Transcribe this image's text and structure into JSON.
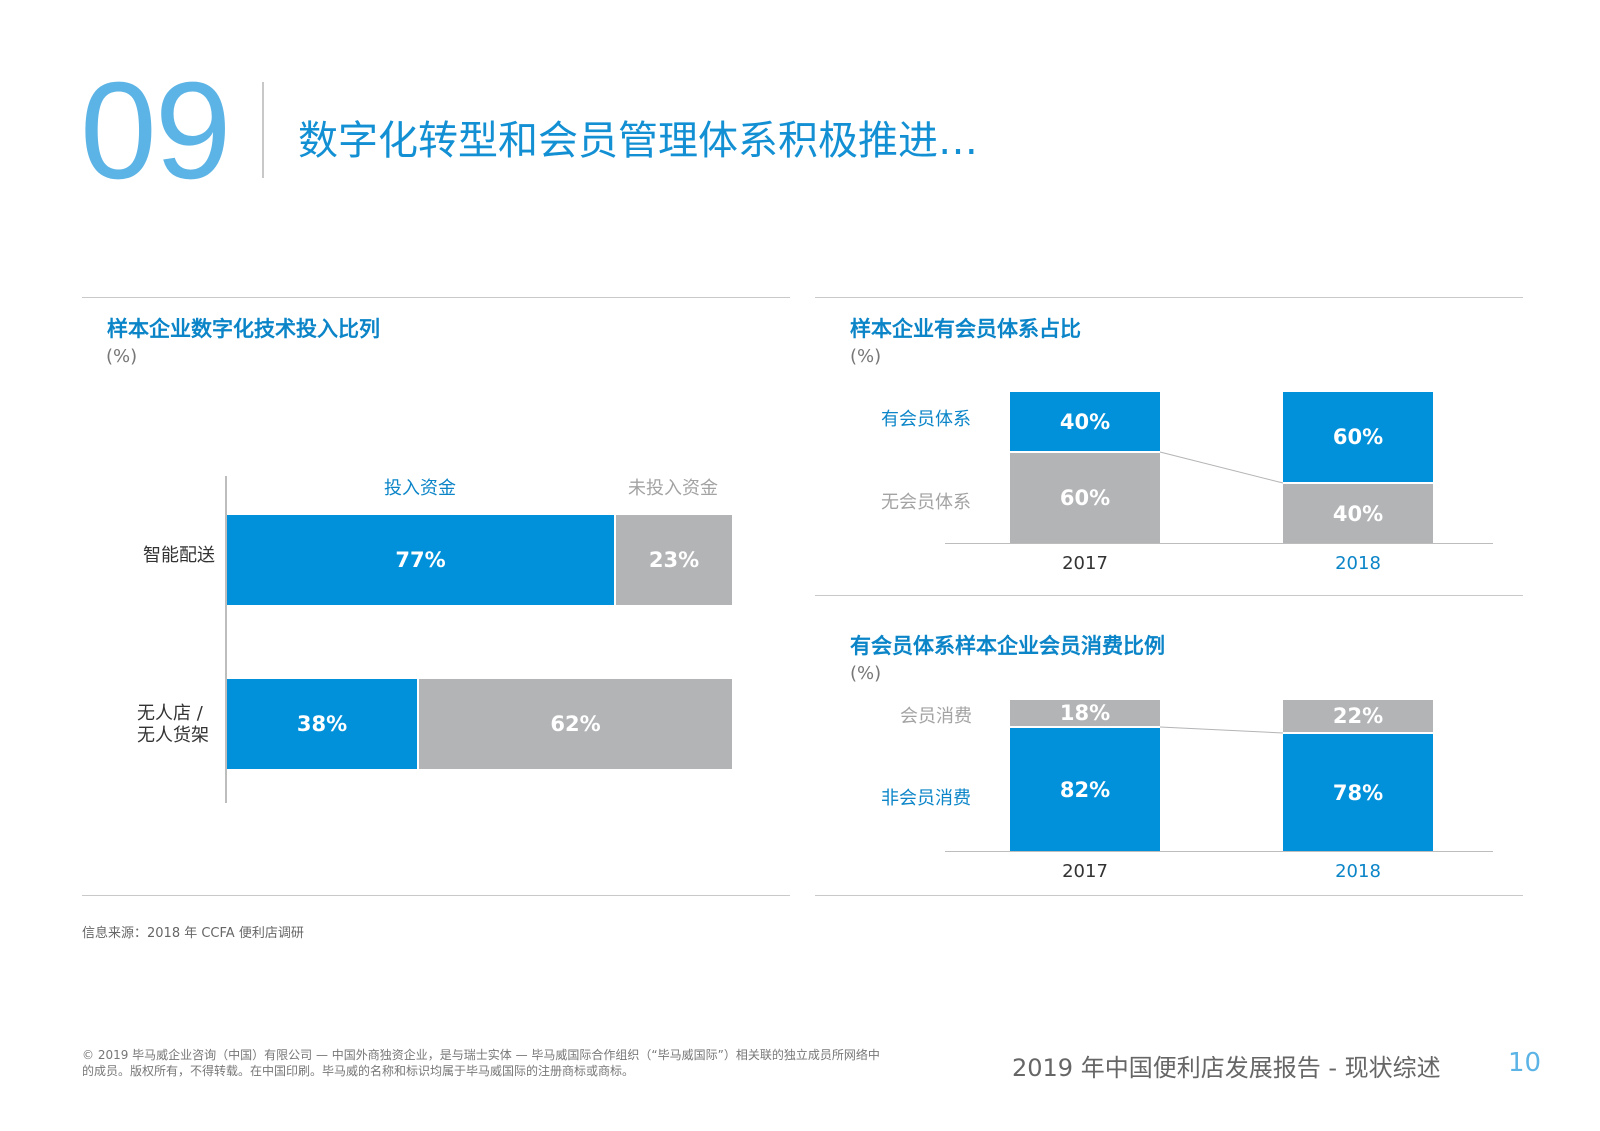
{
  "header": {
    "page_number": "09",
    "title": "数字化转型和会员管理体系积极推进…"
  },
  "colors": {
    "accent": "#0091da",
    "accent_text": "#0b85c8",
    "grey": "#b3b4b6",
    "light_blue": "#5cb4e6"
  },
  "left_panel": {
    "title": "样本企业数字化技术投入比列",
    "unit": "(%)",
    "legend": {
      "invested": "投入资金",
      "not_invested": "未投入资金"
    },
    "categories": [
      {
        "label": "智能配送",
        "invested": "77%",
        "not_invested": "23%"
      },
      {
        "label": "无人店 /\n无人货架",
        "invested": "38%",
        "not_invested": "62%"
      }
    ]
  },
  "right_top": {
    "title": "样本企业有会员体系占比",
    "unit": "(%)",
    "series_labels": {
      "top": "有会员体系",
      "bottom": "无会员体系"
    },
    "years": [
      "2017",
      "2018"
    ],
    "top_values": [
      "40%",
      "60%"
    ],
    "bottom_values": [
      "60%",
      "40%"
    ]
  },
  "right_bottom": {
    "title": "有会员体系样本企业会员消费比例",
    "unit": "(%)",
    "series_labels": {
      "top": "会员消费",
      "bottom": "非会员消费"
    },
    "years": [
      "2017",
      "2018"
    ],
    "top_values": [
      "18%",
      "22%"
    ],
    "bottom_values": [
      "82%",
      "78%"
    ]
  },
  "chart_data": [
    {
      "type": "bar",
      "orientation": "horizontal",
      "stacked": true,
      "title": "样本企业数字化技术投入比列",
      "ylabel": "(%)",
      "categories": [
        "智能配送",
        "无人店 / 无人货架"
      ],
      "series": [
        {
          "name": "投入资金",
          "values": [
            77,
            38
          ]
        },
        {
          "name": "未投入资金",
          "values": [
            23,
            62
          ]
        }
      ],
      "ylim": [
        0,
        100
      ],
      "legend": "top"
    },
    {
      "type": "bar",
      "stacked": true,
      "title": "样本企业有会员体系占比",
      "ylabel": "(%)",
      "categories": [
        "2017",
        "2018"
      ],
      "series": [
        {
          "name": "有会员体系",
          "values": [
            40,
            60
          ]
        },
        {
          "name": "无会员体系",
          "values": [
            60,
            40
          ]
        }
      ],
      "ylim": [
        0,
        100
      ],
      "legend": "left"
    },
    {
      "type": "bar",
      "stacked": true,
      "title": "有会员体系样本企业会员消费比例",
      "ylabel": "(%)",
      "categories": [
        "2017",
        "2018"
      ],
      "series": [
        {
          "name": "会员消费",
          "values": [
            18,
            22
          ]
        },
        {
          "name": "非会员消费",
          "values": [
            82,
            78
          ]
        }
      ],
      "ylim": [
        0,
        100
      ],
      "legend": "left"
    }
  ],
  "footer": {
    "source": "信息来源：2018 年 CCFA 便利店调研",
    "legal": "© 2019 毕马威企业咨询（中国）有限公司 — 中国外商独资企业，是与瑞士实体 — 毕马威国际合作组织（“毕马威国际”）相关联的独立成员所网络中的成员。版权所有，不得转载。在中国印刷。毕马威的名称和标识均属于毕马威国际的注册商标或商标。",
    "report_title": "2019 年中国便利店发展报告 - 现状综述",
    "page": "10"
  }
}
